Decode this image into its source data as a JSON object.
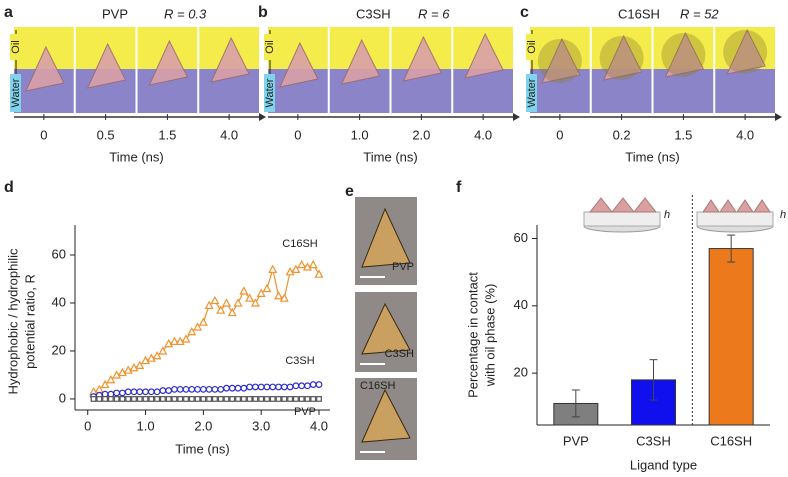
{
  "panels": [
    {
      "letter": "a",
      "ligand": "PVP",
      "ratio": "R = 0.3",
      "times": [
        "0",
        "0.5",
        "1.5",
        "4.0"
      ],
      "axis_label": "Time (ns)",
      "oil": "Oil",
      "water": "Water"
    },
    {
      "letter": "b",
      "ligand": "C3SH",
      "ratio": "R = 6",
      "times": [
        "0",
        "1.0",
        "2.0",
        "4.0"
      ],
      "axis_label": "Time (ns)",
      "oil": "Oil",
      "water": "Water"
    },
    {
      "letter": "c",
      "ligand": "C16SH",
      "ratio": "R = 52",
      "times": [
        "0",
        "0.2",
        "1.5",
        "4.0"
      ],
      "axis_label": "Time (ns)",
      "oil": "Oil",
      "water": "Water"
    }
  ],
  "panel_e": {
    "letter": "e",
    "labels": [
      "PVP",
      "C3SH",
      "C16SH"
    ]
  },
  "chart_data": [
    {
      "type": "scatter",
      "letter": "d",
      "xlabel": "Time (ns)",
      "ylabel": [
        "Hydrophobic / hydrophilic",
        "potential ratio, R"
      ],
      "x": [
        0.1,
        0.2,
        0.3,
        0.4,
        0.5,
        0.6,
        0.7,
        0.8,
        0.9,
        1.0,
        1.1,
        1.2,
        1.3,
        1.4,
        1.5,
        1.6,
        1.7,
        1.8,
        1.9,
        2.0,
        2.1,
        2.2,
        2.3,
        2.4,
        2.5,
        2.6,
        2.7,
        2.8,
        2.9,
        3.0,
        3.1,
        3.2,
        3.3,
        3.4,
        3.5,
        3.6,
        3.7,
        3.8,
        3.9,
        4.0
      ],
      "series": [
        {
          "name": "C16SH",
          "color": "#f0922e",
          "marker": "triangle",
          "line": true,
          "values": [
            3,
            4,
            6,
            8,
            10,
            11,
            12,
            13,
            14,
            16,
            17,
            18,
            20,
            23,
            24,
            24,
            25,
            28,
            30,
            32,
            39,
            41,
            37,
            40,
            36,
            40,
            45,
            42,
            40,
            44,
            46,
            54,
            43,
            42,
            53,
            54,
            56,
            55,
            56,
            52
          ]
        },
        {
          "name": "C3SH",
          "color": "#2b2bd0",
          "marker": "circle",
          "line": false,
          "values": [
            1,
            1.5,
            2,
            2,
            2.5,
            2.5,
            3,
            3,
            3,
            3,
            3,
            3,
            3.5,
            3.5,
            4,
            4,
            4,
            4,
            4,
            4,
            4,
            4,
            4,
            4.5,
            4.5,
            4.5,
            4.5,
            5,
            5,
            5,
            5,
            5,
            5,
            5,
            5,
            5.5,
            5.5,
            5.5,
            6,
            6
          ]
        },
        {
          "name": "PVP",
          "color": "#555555",
          "marker": "square",
          "line": false,
          "values": [
            0,
            0,
            0,
            0,
            0,
            0,
            0,
            0,
            0,
            0,
            0,
            0,
            0,
            0,
            0,
            0,
            0,
            0,
            0,
            0,
            0,
            0,
            0,
            0,
            0,
            0,
            0,
            0,
            0,
            0,
            0,
            0,
            0,
            0,
            0,
            0,
            0,
            0,
            0,
            0
          ]
        }
      ],
      "xlim": [
        -0.22,
        4.19
      ],
      "ylim": [
        -4.6,
        72.5
      ],
      "xticks": [
        0,
        {
          "value": 1,
          "label": "1.0"
        },
        {
          "value": 2,
          "label": "2.0"
        },
        {
          "value": 3,
          "label": "3.0"
        },
        {
          "value": 4,
          "label": "4.0"
        }
      ],
      "yticks": [
        0,
        20,
        40,
        60
      ]
    },
    {
      "type": "bar",
      "letter": "f",
      "xlabel": "Ligand type",
      "ylabel": [
        "Percentage in contact",
        "with oil phase (%)"
      ],
      "categories": [
        "PVP",
        "C3SH",
        "C16SH"
      ],
      "values": [
        11,
        18,
        57
      ],
      "errors": [
        4,
        6,
        4
      ],
      "colors": [
        "#7f7f7f",
        "#1010ee",
        "#ec7a1c"
      ],
      "ylim": [
        4.6,
        64
      ],
      "yticks": [
        20,
        40,
        60
      ],
      "inset_label": "h"
    }
  ]
}
